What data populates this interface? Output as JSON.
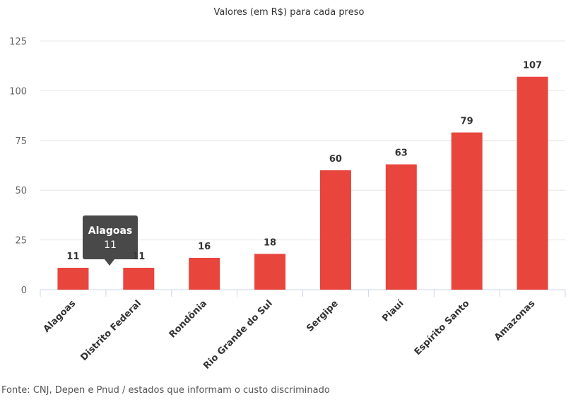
{
  "chart_data": {
    "type": "bar",
    "title": "Valores (em R$) para cada preso",
    "categories": [
      "Alagoas",
      "Distrito Federal",
      "Rondônia",
      "Rio Grande do Sul",
      "Sergipe",
      "Piauí",
      "Espírito Santo",
      "Amazonas"
    ],
    "values": [
      11,
      11,
      16,
      18,
      60,
      63,
      79,
      107
    ],
    "xlabel": "",
    "ylabel": "",
    "ylim": [
      0,
      125
    ],
    "yticks": [
      0,
      25,
      50,
      75,
      100,
      125
    ],
    "grid": true,
    "bar_color": "#e8453c",
    "tooltip": {
      "title": "Alagoas",
      "value": "11"
    }
  },
  "source": "Fonte: CNJ, Depen e Pnud / estados que informam o custo discriminado"
}
